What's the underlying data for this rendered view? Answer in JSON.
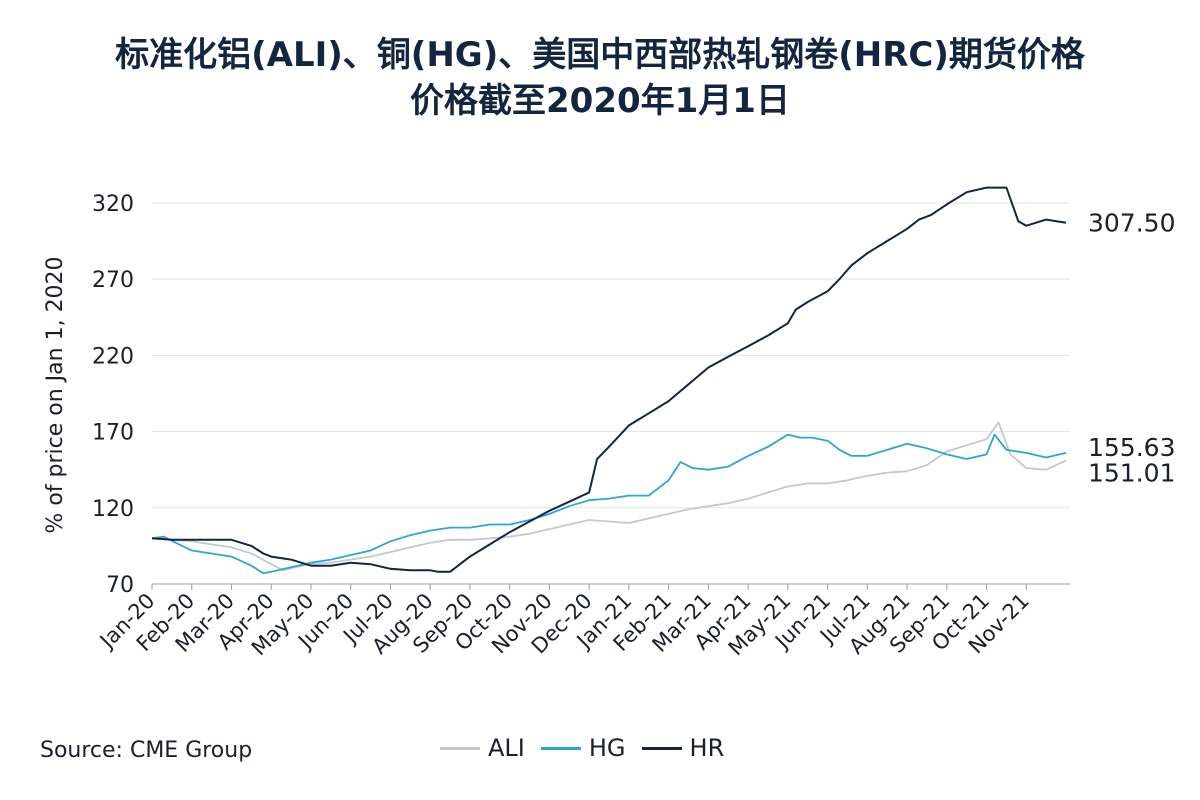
{
  "title_line1": "标准化铝(ALI)、铜(HG)、美国中西部热轧钢卷(HRC)期货价格",
  "title_line2": "价格截至2020年1月1日",
  "source": "Source: CME Group",
  "chart_data": {
    "type": "line",
    "ylabel": "% of price on Jan 1, 2020",
    "xlabel": "",
    "ylim": [
      70,
      335
    ],
    "yticks": [
      70,
      120,
      170,
      220,
      270,
      320
    ],
    "xlim": [
      0,
      23.1
    ],
    "x_tick_labels": [
      "Jan-20",
      "Feb-20",
      "Mar-20",
      "Apr-20",
      "May-20",
      "Jun-20",
      "Jul-20",
      "Aug-20",
      "Sep-20",
      "Oct-20",
      "Nov-20",
      "Dec-20",
      "Jan-21",
      "Feb-21",
      "Mar-21",
      "Apr-21",
      "May-21",
      "Jun-21",
      "Jul-21",
      "Aug-21",
      "Sep-21",
      "Oct-21",
      "Nov-21"
    ],
    "x_tick_positions": [
      0,
      1,
      2,
      3,
      4,
      5,
      6,
      7,
      8,
      9,
      10,
      11,
      12,
      13,
      14,
      15,
      16,
      17,
      18,
      19,
      20,
      21,
      22
    ],
    "grid": "horizontal",
    "legend_position": "bottom",
    "series": [
      {
        "name": "ALI",
        "color": "#c5c8cc",
        "end_label": "151.01",
        "x": [
          0,
          0.5,
          1,
          1.5,
          2,
          2.5,
          3,
          3.3,
          3.6,
          4,
          4.5,
          5,
          5.5,
          6,
          6.5,
          7,
          7.5,
          8,
          8.5,
          9,
          9.5,
          10,
          10.5,
          11,
          11.5,
          12,
          12.5,
          13,
          13.5,
          14,
          14.5,
          15,
          15.5,
          16,
          16.5,
          17,
          17.5,
          18,
          18.5,
          19,
          19.5,
          20,
          20.5,
          21,
          21.3,
          21.6,
          22,
          22.5,
          23
        ],
        "y": [
          100,
          99,
          98,
          96,
          94,
          90,
          83,
          79,
          81,
          83,
          84,
          86,
          88,
          91,
          94,
          97,
          99,
          99,
          100,
          101,
          103,
          106,
          109,
          112,
          111,
          110,
          113,
          116,
          119,
          121,
          123,
          126,
          130,
          134,
          136,
          136,
          138,
          141,
          143,
          144,
          148,
          157,
          161,
          165,
          176,
          155,
          146,
          145,
          151
        ]
      },
      {
        "name": "HG",
        "color": "#2aa6d8",
        "end_label": "155.63",
        "x": [
          0,
          0.3,
          0.6,
          1,
          1.5,
          2,
          2.5,
          2.8,
          3,
          3.5,
          4,
          4.5,
          5,
          5.5,
          6,
          6.5,
          7,
          7.5,
          8,
          8.5,
          9,
          9.5,
          10,
          10.5,
          11,
          11.5,
          12,
          12.5,
          13,
          13.3,
          13.6,
          14,
          14.5,
          15,
          15.5,
          16,
          16.3,
          16.6,
          17,
          17.3,
          17.6,
          18,
          18.5,
          19,
          19.5,
          20,
          20.5,
          21,
          21.2,
          21.5,
          22,
          22.5,
          23
        ],
        "y": [
          100,
          101,
          97,
          92,
          90,
          88,
          82,
          77,
          78,
          81,
          84,
          86,
          89,
          92,
          98,
          102,
          105,
          107,
          107,
          109,
          109,
          112,
          116,
          121,
          125,
          126,
          128,
          128,
          138,
          150,
          146,
          145,
          147,
          154,
          160,
          168,
          166,
          166,
          164,
          158,
          154,
          154,
          158,
          162,
          159,
          155,
          152,
          155,
          168,
          158,
          156,
          153,
          156
        ]
      },
      {
        "name": "HR",
        "color": "#14253f",
        "end_label": "307.50",
        "x": [
          0,
          0.5,
          1,
          1.5,
          2,
          2.5,
          2.8,
          3,
          3.5,
          4,
          4.5,
          5,
          5.5,
          6,
          6.5,
          7,
          7.2,
          7.5,
          8,
          8.5,
          9,
          9.5,
          10,
          10.5,
          11,
          11.2,
          11.5,
          12,
          12.5,
          13,
          13.5,
          14,
          14.5,
          15,
          15.5,
          16,
          16.2,
          16.5,
          17,
          17.3,
          17.6,
          18,
          18.5,
          19,
          19.3,
          19.6,
          20,
          20.5,
          21,
          21.5,
          21.8,
          22,
          22.5,
          23
        ],
        "y": [
          100,
          99,
          99,
          99,
          99,
          95,
          90,
          88,
          86,
          82,
          82,
          84,
          83,
          80,
          79,
          79,
          78,
          78,
          88,
          96,
          104,
          111,
          118,
          124,
          130,
          152,
          160,
          174,
          182,
          190,
          201,
          212,
          219,
          226,
          233,
          241,
          250,
          255,
          262,
          270,
          279,
          287,
          295,
          303,
          309,
          312,
          319,
          327,
          330,
          330,
          308,
          305,
          309,
          307
        ]
      }
    ]
  }
}
